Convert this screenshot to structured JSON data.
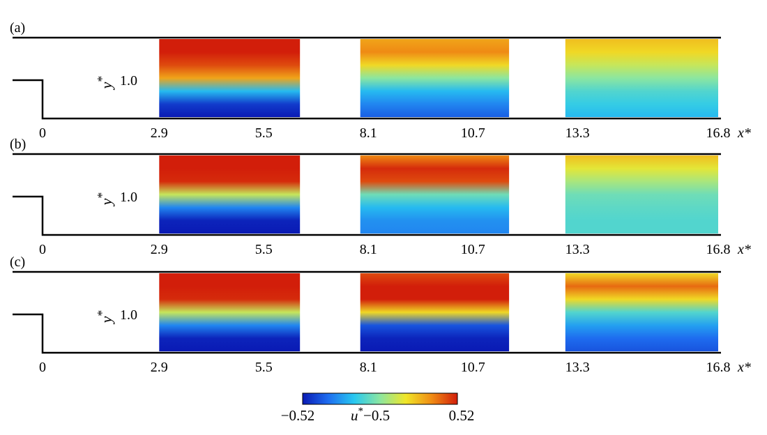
{
  "figure": {
    "panels": [
      {
        "label": "(a)",
        "ylabel": "y",
        "ylabel_sup": "*",
        "ytick": "1.0"
      },
      {
        "label": "(b)",
        "ylabel": "y",
        "ylabel_sup": "*",
        "ytick": "1.0"
      },
      {
        "label": "(c)",
        "ylabel": "y",
        "ylabel_sup": "*",
        "ytick": "1.0"
      }
    ],
    "xlabel": "x*",
    "colorbar": {
      "min_label": "−0.52",
      "max_label": "0.52",
      "label_main": "u",
      "label_sup": "*",
      "label_suffix": "−0.5",
      "colors": [
        "#0a1ab4",
        "#1e6ef0",
        "#28c8f0",
        "#8ce6a0",
        "#f0e628",
        "#f08c14",
        "#d21e0a"
      ]
    }
  },
  "chart_data": [
    {
      "type": "heatmap",
      "panel": "(a)",
      "x_ticks": [
        "0",
        "2.9",
        "5.5",
        "8.1",
        "10.7",
        "13.3",
        "16.8"
      ],
      "x_tick_values": [
        0,
        2.9,
        5.5,
        8.1,
        10.7,
        13.3,
        16.8
      ],
      "xlabel": "x*",
      "ylabel": "y*",
      "y_ticks": [
        "1.0"
      ],
      "fields": [
        {
          "x_range": [
            2.9,
            6.4
          ],
          "profile": [
            0.52,
            0.52,
            0.45,
            0.3,
            -0.2,
            -0.45,
            -0.52
          ]
        },
        {
          "x_range": [
            7.9,
            11.6
          ],
          "profile": [
            0.3,
            0.35,
            0.2,
            0.0,
            -0.2,
            -0.3,
            -0.38
          ]
        },
        {
          "x_range": [
            13.0,
            16.8
          ],
          "profile": [
            0.25,
            0.2,
            0.1,
            0.0,
            -0.1,
            -0.15,
            -0.2
          ]
        }
      ],
      "value_range": [
        -0.52,
        0.52
      ]
    },
    {
      "type": "heatmap",
      "panel": "(b)",
      "x_ticks": [
        "0",
        "2.9",
        "5.5",
        "8.1",
        "10.7",
        "13.3",
        "16.8"
      ],
      "x_tick_values": [
        0,
        2.9,
        5.5,
        8.1,
        10.7,
        13.3,
        16.8
      ],
      "xlabel": "x*",
      "ylabel": "y*",
      "y_ticks": [
        "1.0"
      ],
      "fields": [
        {
          "x_range": [
            2.9,
            6.4
          ],
          "profile": [
            0.52,
            0.52,
            0.5,
            0.1,
            -0.3,
            -0.5,
            -0.52
          ]
        },
        {
          "x_range": [
            7.9,
            11.6
          ],
          "profile": [
            0.35,
            0.5,
            0.45,
            -0.05,
            -0.2,
            -0.28,
            -0.3
          ]
        },
        {
          "x_range": [
            13.0,
            16.8
          ],
          "profile": [
            0.25,
            0.15,
            0.05,
            -0.05,
            -0.08,
            -0.1,
            -0.1
          ]
        }
      ],
      "value_range": [
        -0.52,
        0.52
      ]
    },
    {
      "type": "heatmap",
      "panel": "(c)",
      "x_ticks": [
        "0",
        "2.9",
        "5.5",
        "8.1",
        "10.7",
        "13.3",
        "16.8"
      ],
      "x_tick_values": [
        0,
        2.9,
        5.5,
        8.1,
        10.7,
        13.3,
        16.8
      ],
      "xlabel": "x*",
      "ylabel": "y*",
      "y_ticks": [
        "1.0"
      ],
      "fields": [
        {
          "x_range": [
            2.9,
            6.4
          ],
          "profile": [
            0.52,
            0.52,
            0.5,
            0.1,
            -0.3,
            -0.5,
            -0.52
          ]
        },
        {
          "x_range": [
            7.9,
            11.6
          ],
          "profile": [
            0.45,
            0.52,
            0.52,
            0.2,
            -0.4,
            -0.5,
            -0.52
          ]
        },
        {
          "x_range": [
            13.0,
            16.8
          ],
          "profile": [
            0.2,
            0.4,
            0.2,
            -0.1,
            -0.25,
            -0.35,
            -0.4
          ]
        }
      ],
      "value_range": [
        -0.52,
        0.52
      ]
    }
  ]
}
